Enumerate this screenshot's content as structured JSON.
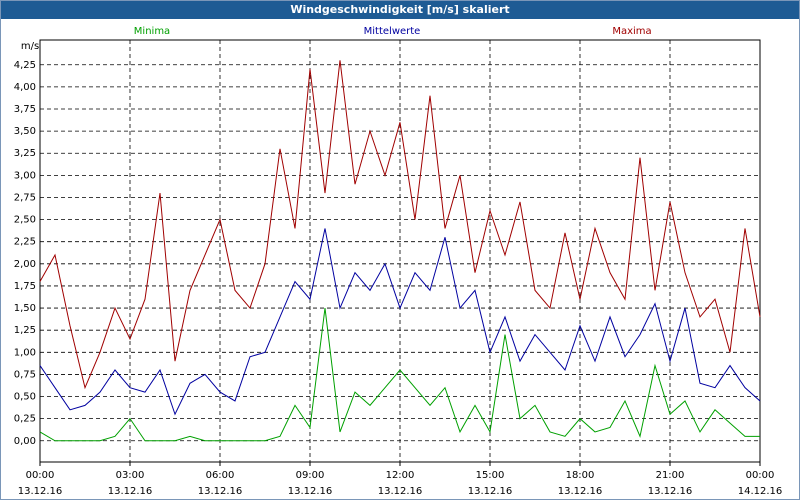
{
  "chart_data": {
    "type": "line",
    "title": "Windgeschwindigkeit [m/s] skaliert",
    "y_label": "m/s",
    "x": [
      0,
      0.5,
      1,
      1.5,
      2,
      2.5,
      3,
      3.5,
      4,
      4.5,
      5,
      5.5,
      6,
      6.5,
      7,
      7.5,
      8,
      8.5,
      9,
      9.5,
      10,
      10.5,
      11,
      11.5,
      12,
      12.5,
      13,
      13.5,
      14,
      14.5,
      15,
      15.5,
      16,
      16.5,
      17,
      17.5,
      18,
      18.5,
      19,
      19.5,
      20,
      20.5,
      21,
      21.5,
      22,
      22.5,
      23,
      23.5,
      24
    ],
    "series": [
      {
        "name": "Minima",
        "color": "#00a000",
        "values": [
          0.1,
          0,
          0,
          0,
          0,
          0.05,
          0.25,
          0,
          0,
          0,
          0.05,
          0,
          0,
          0,
          0,
          0,
          0.05,
          0.4,
          0.15,
          1.5,
          0.1,
          0.55,
          0.4,
          0.6,
          0.8,
          0.6,
          0.4,
          0.6,
          0.1,
          0.4,
          0.1,
          1.2,
          0.25,
          0.4,
          0.1,
          0.05,
          0.25,
          0.1,
          0.15,
          0.45,
          0.05,
          0.85,
          0.3,
          0.45,
          0.1,
          0.35,
          0.2,
          0.05,
          0.05
        ]
      },
      {
        "name": "Mittelwerte",
        "color": "#0000a0",
        "values": [
          0.85,
          0.6,
          0.35,
          0.4,
          0.55,
          0.8,
          0.6,
          0.55,
          0.8,
          0.3,
          0.65,
          0.75,
          0.55,
          0.45,
          0.95,
          1.0,
          1.4,
          1.8,
          1.6,
          2.4,
          1.5,
          1.9,
          1.7,
          2.0,
          1.5,
          1.9,
          1.7,
          2.3,
          1.5,
          1.7,
          1.0,
          1.4,
          0.9,
          1.2,
          1.0,
          0.8,
          1.3,
          0.9,
          1.4,
          0.95,
          1.2,
          1.55,
          0.9,
          1.5,
          0.65,
          0.6,
          0.85,
          0.6,
          0.45
        ]
      },
      {
        "name": "Maxima",
        "color": "#a00000",
        "values": [
          1.8,
          2.1,
          1.3,
          0.6,
          1.0,
          1.5,
          1.15,
          1.6,
          2.8,
          0.9,
          1.7,
          2.1,
          2.5,
          1.7,
          1.5,
          2.0,
          3.3,
          2.4,
          4.2,
          2.8,
          4.3,
          2.9,
          3.5,
          3.0,
          3.6,
          2.5,
          3.9,
          2.4,
          3.0,
          1.9,
          2.6,
          2.1,
          2.7,
          1.7,
          1.5,
          2.35,
          1.6,
          2.4,
          1.9,
          1.6,
          3.2,
          1.7,
          2.7,
          1.9,
          1.4,
          1.6,
          1.0,
          2.4,
          1.4
        ]
      }
    ],
    "xlim": [
      0,
      24
    ],
    "xticks": [
      {
        "value": 0,
        "label": [
          "00:00",
          "13.12.16"
        ]
      },
      {
        "value": 3,
        "label": [
          "03:00",
          "13.12.16"
        ]
      },
      {
        "value": 6,
        "label": [
          "06:00",
          "13.12.16"
        ]
      },
      {
        "value": 9,
        "label": [
          "09:00",
          "13.12.16"
        ]
      },
      {
        "value": 12,
        "label": [
          "12:00",
          "13.12.16"
        ]
      },
      {
        "value": 15,
        "label": [
          "15:00",
          "13.12.16"
        ]
      },
      {
        "value": 18,
        "label": [
          "18:00",
          "13.12.16"
        ]
      },
      {
        "value": 21,
        "label": [
          "21:00",
          "13.12.16"
        ]
      },
      {
        "value": 24,
        "label": [
          "00:00",
          "14.12.16"
        ]
      }
    ],
    "ylim": [
      -0.24,
      4.53
    ],
    "yticks": [
      {
        "value": 0,
        "label": "0,00"
      },
      {
        "value": 0.25,
        "label": "0,25"
      },
      {
        "value": 0.5,
        "label": "0,50"
      },
      {
        "value": 0.75,
        "label": "0,75"
      },
      {
        "value": 1,
        "label": "1,00"
      },
      {
        "value": 1.25,
        "label": "1,25"
      },
      {
        "value": 1.5,
        "label": "1,50"
      },
      {
        "value": 1.75,
        "label": "1,75"
      },
      {
        "value": 2,
        "label": "2,00"
      },
      {
        "value": 2.25,
        "label": "2,25"
      },
      {
        "value": 2.5,
        "label": "2,50"
      },
      {
        "value": 2.75,
        "label": "2,75"
      },
      {
        "value": 3,
        "label": "3,00"
      },
      {
        "value": 3.25,
        "label": "3,25"
      },
      {
        "value": 3.5,
        "label": "3,50"
      },
      {
        "value": 3.75,
        "label": "3,75"
      },
      {
        "value": 4,
        "label": "4,00"
      },
      {
        "value": 4.25,
        "label": "4,25"
      }
    ],
    "grid": true
  }
}
